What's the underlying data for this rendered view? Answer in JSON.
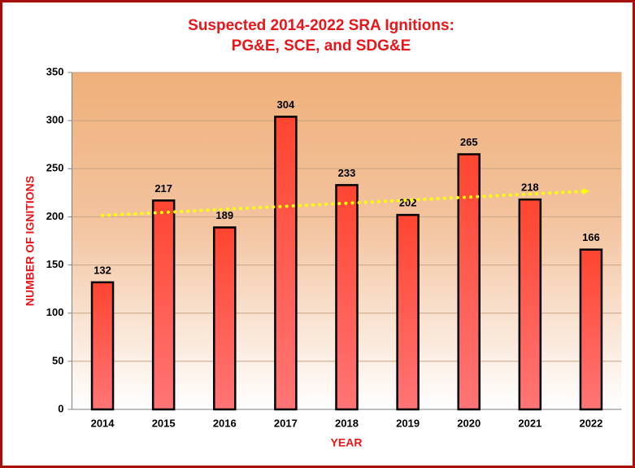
{
  "chart_data": {
    "type": "bar",
    "title": [
      "Suspected 2014-2022 SRA Ignitions:",
      "PG&E, SCE, and SDG&E"
    ],
    "x_label": "YEAR",
    "y_label": "NUMBER OF IGNITIONS",
    "categories": [
      "2014",
      "2015",
      "2016",
      "2017",
      "2018",
      "2019",
      "2020",
      "2021",
      "2022"
    ],
    "values": [
      132,
      217,
      189,
      304,
      233,
      202,
      265,
      218,
      166
    ],
    "color": "#ff4b33",
    "ylim": [
      0,
      350
    ],
    "yticks": [
      0,
      50,
      100,
      150,
      200,
      250,
      300,
      350
    ],
    "grid": true,
    "trendline": true,
    "trendline_color": "#ffff00"
  }
}
